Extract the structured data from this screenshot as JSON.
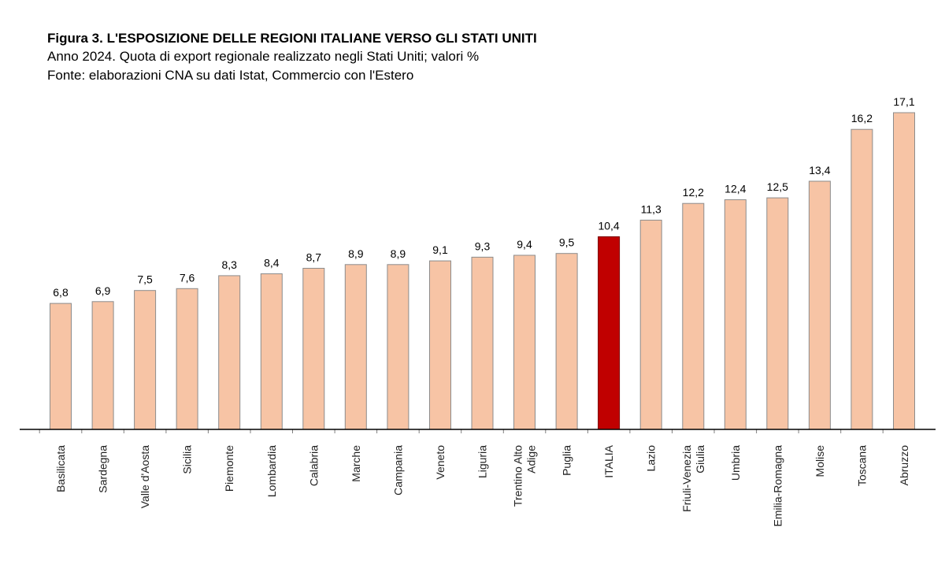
{
  "header": {
    "title": "Figura 3. L'ESPOSIZIONE DELLE REGIONI ITALIANE VERSO GLI STATI UNITI",
    "subtitle": "Anno 2024. Quota di export regionale realizzato negli Stati Uniti; valori %",
    "source": "Fonte: elaborazioni CNA su dati Istat, Commercio con l'Estero"
  },
  "chart_data": {
    "type": "bar",
    "title": "Figura 3. L'ESPOSIZIONE DELLE REGIONI ITALIANE VERSO GLI STATI UNITI",
    "categories": [
      [
        "Basilicata"
      ],
      [
        "Sardegna"
      ],
      [
        "Valle d'Aosta"
      ],
      [
        "Sicilia"
      ],
      [
        "Piemonte"
      ],
      [
        "Lombardia"
      ],
      [
        "Calabria"
      ],
      [
        "Marche"
      ],
      [
        "Campania"
      ],
      [
        "Veneto"
      ],
      [
        "Liguria"
      ],
      [
        "Trentino Alto",
        "Adige"
      ],
      [
        "Puglia"
      ],
      [
        "ITALIA"
      ],
      [
        "Lazio"
      ],
      [
        "Friuli-Venezia",
        "Giulia"
      ],
      [
        "Umbria"
      ],
      [
        "Emilia-Romagna"
      ],
      [
        "Molise"
      ],
      [
        "Toscana"
      ],
      [
        "Abruzzo"
      ]
    ],
    "values": [
      6.8,
      6.9,
      7.5,
      7.6,
      8.3,
      8.4,
      8.7,
      8.9,
      8.9,
      9.1,
      9.3,
      9.4,
      9.5,
      10.4,
      11.3,
      12.2,
      12.4,
      12.5,
      13.4,
      16.2,
      17.1
    ],
    "value_labels": [
      "6,8",
      "6,9",
      "7,5",
      "7,6",
      "8,3",
      "8,4",
      "8,7",
      "8,9",
      "8,9",
      "9,1",
      "9,3",
      "9,4",
      "9,5",
      "10,4",
      "11,3",
      "12,2",
      "12,4",
      "12,5",
      "13,4",
      "16,2",
      "17,1"
    ],
    "highlight_index": 13,
    "colors": {
      "bar": "#f7c4a5",
      "bar_stroke": "#8c8c8c",
      "highlight": "#c00000",
      "highlight_stroke": "#7a0000",
      "axis": "#000000"
    },
    "ylim": [
      0,
      17.1
    ],
    "grid": false,
    "legend": "none"
  }
}
